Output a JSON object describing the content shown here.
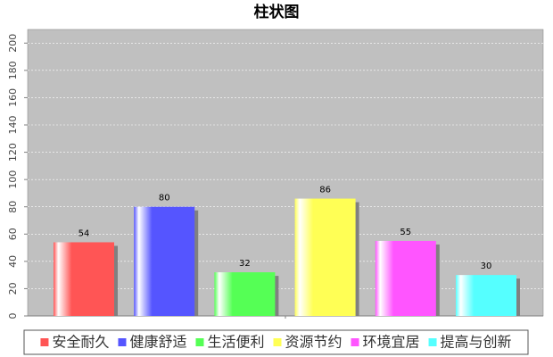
{
  "chart_data": {
    "type": "bar",
    "title": "柱状图",
    "categories": [
      null
    ],
    "series": [
      {
        "name": "安全耐久",
        "color": "#ff5555",
        "values": [
          54
        ]
      },
      {
        "name": "健康舒适",
        "color": "#5555ff",
        "values": [
          80
        ]
      },
      {
        "name": "生活便利",
        "color": "#55ff55",
        "values": [
          32
        ]
      },
      {
        "name": "资源节约",
        "color": "#ffff55",
        "values": [
          86
        ]
      },
      {
        "name": "环境宜居",
        "color": "#ff55ff",
        "values": [
          55
        ]
      },
      {
        "name": "提高与创新",
        "color": "#55ffff",
        "values": [
          30
        ]
      }
    ],
    "ylim": [
      0,
      210
    ],
    "yticks": [
      0,
      20,
      40,
      60,
      80,
      100,
      120,
      140,
      160,
      180,
      200
    ],
    "grid": true,
    "legend": "bottom"
  }
}
